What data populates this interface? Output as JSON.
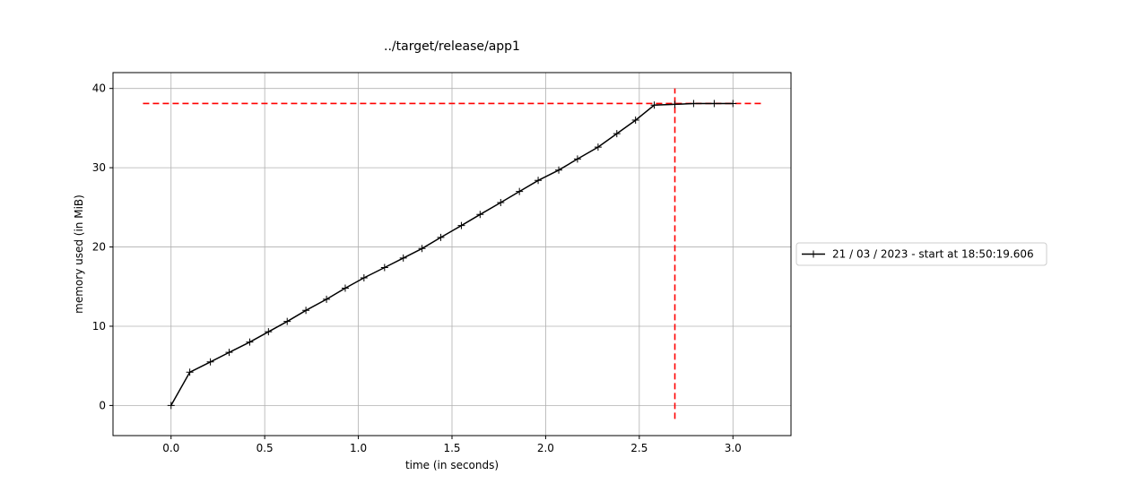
{
  "chart_data": {
    "type": "line",
    "title": "../target/release/app1",
    "xlabel": "time (in seconds)",
    "ylabel": "memory used (in MiB)",
    "xlim": [
      -0.31,
      3.31
    ],
    "ylim": [
      -3.8,
      42.0
    ],
    "grid": true,
    "legend_position": "right, outside plot area",
    "x_ticks": [
      "0.0",
      "0.5",
      "1.0",
      "1.5",
      "2.0",
      "2.5",
      "3.0"
    ],
    "y_ticks": [
      "0",
      "10",
      "20",
      "30",
      "40"
    ],
    "series": [
      {
        "name": "21 / 03 / 2023 - start at 18:50:19.606",
        "color": "#000000",
        "marker": "+",
        "x": [
          0.0,
          0.1,
          0.21,
          0.31,
          0.42,
          0.52,
          0.62,
          0.72,
          0.83,
          0.93,
          1.03,
          1.14,
          1.24,
          1.34,
          1.44,
          1.55,
          1.65,
          1.76,
          1.86,
          1.96,
          2.07,
          2.17,
          2.28,
          2.38,
          2.48,
          2.58,
          2.69,
          2.79,
          2.9,
          3.0
        ],
        "y": [
          0.0,
          4.2,
          5.5,
          6.7,
          8.0,
          9.3,
          10.6,
          12.0,
          13.4,
          14.8,
          16.1,
          17.4,
          18.6,
          19.8,
          21.2,
          22.7,
          24.1,
          25.6,
          27.0,
          28.4,
          29.7,
          31.1,
          32.6,
          34.3,
          36.0,
          37.9,
          38.0,
          38.1,
          38.1,
          38.1
        ]
      }
    ],
    "reference_lines": [
      {
        "orientation": "horizontal",
        "value": 38.1,
        "from": -0.15,
        "to": 3.15,
        "color": "#ff0000",
        "style": "dashed"
      },
      {
        "orientation": "vertical",
        "value": 2.69,
        "from": -1.7,
        "to": 40.0,
        "color": "#ff0000",
        "style": "dashed"
      }
    ],
    "colors": {
      "grid": "#b0b0b0",
      "frame": "#000000",
      "legend_border": "#cccccc"
    }
  }
}
